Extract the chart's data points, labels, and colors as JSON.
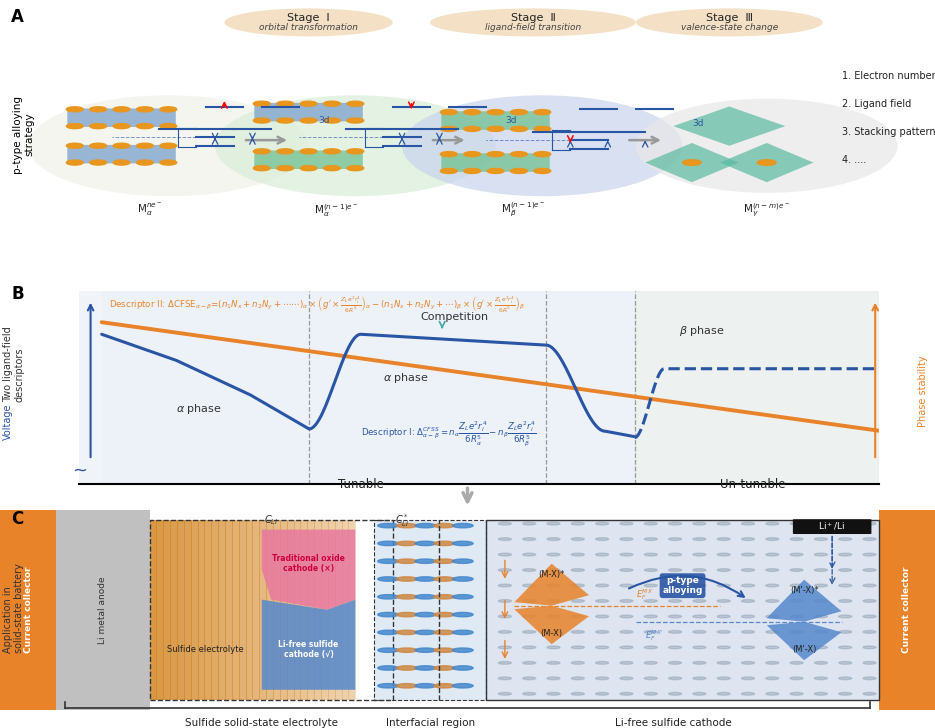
{
  "fig_width": 9.35,
  "fig_height": 7.28,
  "bg_color": "#ffffff",
  "orange_color": "#E8832A",
  "blue_color": "#2A55A4",
  "teal_arrow": "#4AACAA",
  "stage_oval_color": "#F2DEC0",
  "circle1_color": "#EEF2E8",
  "circle2_color": "#D8EDD8",
  "circle3_color": "#D0DCF0",
  "circle4_color": "#E8E8E8",
  "panel_bg_b": "#F0F4F8",
  "panel_bg_c_left": "#D4C4A8",
  "panel_bg_c_right": "#C8D8E8",
  "notes_list": [
    "1. Electron number",
    "2. Ligand field",
    "3. Stacking pattern",
    "4. ...."
  ],
  "formulas": [
    "M_alpha_ne",
    "M_alpha_n-1e",
    "M_beta_n-1e",
    "M_gamma_n-me"
  ],
  "sulfide_electrolyte_label": "Sulfide solid-state electrolyte",
  "interfacial_label": "Interfacial region",
  "cathode_label": "Li-free sulfide cathode"
}
